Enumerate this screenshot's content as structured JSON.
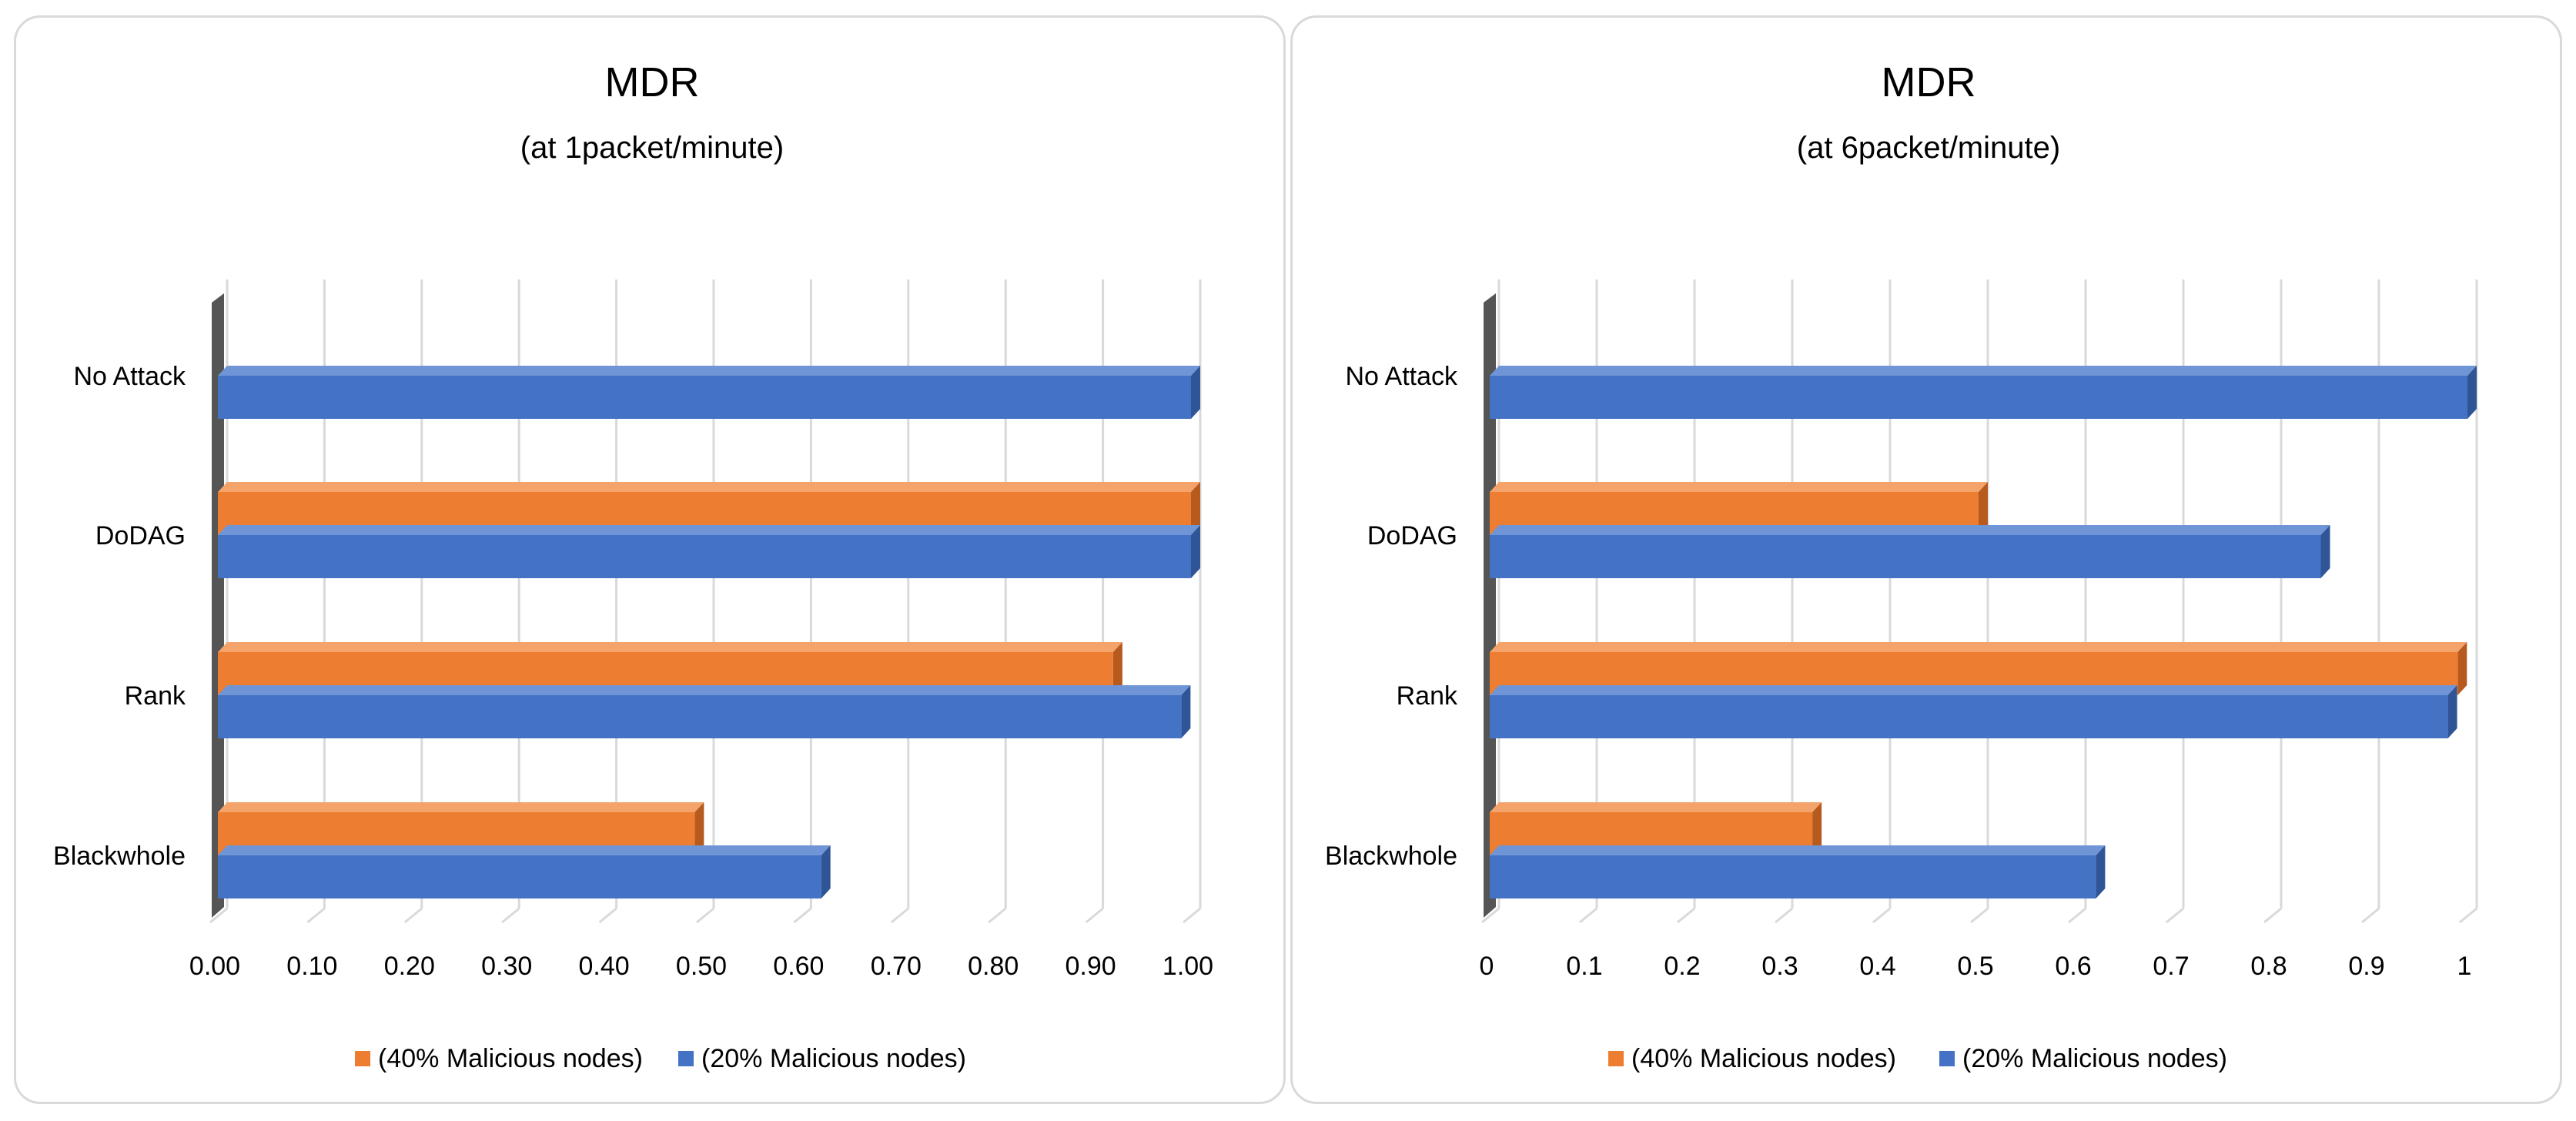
{
  "colors": {
    "orange": "#ED7D31",
    "orange_dark": "#B65A1E",
    "orange_light": "#F4A36B",
    "blue": "#4472C4",
    "blue_dark": "#2F5597",
    "blue_light": "#6F95D6",
    "grid": "#d9d9d9",
    "text": "#000000"
  },
  "chart_data": [
    {
      "type": "bar",
      "orientation": "horizontal",
      "title": "MDR",
      "subtitle": "(at 1packet/minute)",
      "categories": [
        "No Attack",
        "DoDAG",
        "Rank",
        "Blackwhole"
      ],
      "series": [
        {
          "name": "(40% Malicious nodes)",
          "values": [
            null,
            1.0,
            0.92,
            0.49
          ]
        },
        {
          "name": "(20% Malicious nodes)",
          "values": [
            1.0,
            1.0,
            0.99,
            0.62
          ]
        }
      ],
      "xlim": [
        0,
        1.0
      ],
      "ticks": [
        0,
        0.1,
        0.2,
        0.3,
        0.4,
        0.5,
        0.6,
        0.7,
        0.8,
        0.9,
        1.0
      ],
      "tick_labels": [
        "0.00",
        "0.10",
        "0.20",
        "0.30",
        "0.40",
        "0.50",
        "0.60",
        "0.70",
        "0.80",
        "0.90",
        "1.00"
      ],
      "grid": true,
      "legend": "bottom"
    },
    {
      "type": "bar",
      "orientation": "horizontal",
      "title": "MDR",
      "subtitle": "(at 6packet/minute)",
      "categories": [
        "No Attack",
        "DoDAG",
        "Rank",
        "Blackwhole"
      ],
      "series": [
        {
          "name": "(40% Malicious nodes)",
          "values": [
            null,
            0.5,
            0.99,
            0.33
          ]
        },
        {
          "name": "(20% Malicious nodes)",
          "values": [
            1.0,
            0.85,
            0.98,
            0.62
          ]
        }
      ],
      "xlim": [
        0,
        1.0
      ],
      "ticks": [
        0,
        0.1,
        0.2,
        0.3,
        0.4,
        0.5,
        0.6,
        0.7,
        0.8,
        0.9,
        1.0
      ],
      "tick_labels": [
        "0",
        "0.1",
        "0.2",
        "0.3",
        "0.4",
        "0.5",
        "0.6",
        "0.7",
        "0.8",
        "0.9",
        "1"
      ],
      "grid": true,
      "legend": "bottom"
    }
  ]
}
